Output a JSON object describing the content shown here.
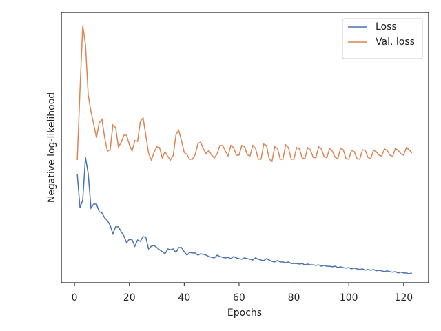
{
  "chart_data": {
    "type": "line",
    "x_label": "Epochs",
    "y_label": "Negative log-likelihood",
    "x": [
      1,
      2,
      3,
      4,
      5,
      6,
      7,
      8,
      9,
      10,
      11,
      12,
      13,
      14,
      15,
      16,
      17,
      18,
      19,
      20,
      21,
      22,
      23,
      24,
      25,
      26,
      27,
      28,
      29,
      30,
      31,
      32,
      33,
      34,
      35,
      36,
      37,
      38,
      39,
      40,
      41,
      42,
      43,
      44,
      45,
      46,
      47,
      48,
      49,
      50,
      51,
      52,
      53,
      54,
      55,
      56,
      57,
      58,
      59,
      60,
      61,
      62,
      63,
      64,
      65,
      66,
      67,
      68,
      69,
      70,
      71,
      72,
      73,
      74,
      75,
      76,
      77,
      78,
      79,
      80,
      81,
      82,
      83,
      84,
      85,
      86,
      87,
      88,
      89,
      90,
      91,
      92,
      93,
      94,
      95,
      96,
      97,
      98,
      99,
      100,
      101,
      102,
      103,
      104,
      105,
      106,
      107,
      108,
      109,
      110,
      111,
      112,
      113,
      114,
      115,
      116,
      117,
      118,
      119,
      120,
      121,
      122,
      123
    ],
    "series": [
      {
        "name": "Loss",
        "color": "#4c72b0",
        "values": [
          4.03,
          2.76,
          3.06,
          4.64,
          4.03,
          2.76,
          2.91,
          2.91,
          2.63,
          2.58,
          2.4,
          2.3,
          2.12,
          1.81,
          2.07,
          2.07,
          1.89,
          1.73,
          1.48,
          1.61,
          1.58,
          1.35,
          1.58,
          1.53,
          1.71,
          1.68,
          1.25,
          1.35,
          1.38,
          1.3,
          1.22,
          1.15,
          1.07,
          1.25,
          1.22,
          1.25,
          1.12,
          1.3,
          1.3,
          1.15,
          1.02,
          1.12,
          1.1,
          1.1,
          1.02,
          1.07,
          1.05,
          1.02,
          0.97,
          0.94,
          0.92,
          1.02,
          0.97,
          0.94,
          0.92,
          0.94,
          0.89,
          0.97,
          0.92,
          0.89,
          0.87,
          0.92,
          0.89,
          0.87,
          0.84,
          0.92,
          0.87,
          0.84,
          0.82,
          0.89,
          0.84,
          0.79,
          0.77,
          0.82,
          0.77,
          0.77,
          0.74,
          0.77,
          0.71,
          0.71,
          0.71,
          0.69,
          0.71,
          0.66,
          0.69,
          0.66,
          0.66,
          0.64,
          0.66,
          0.61,
          0.64,
          0.61,
          0.61,
          0.59,
          0.61,
          0.56,
          0.59,
          0.56,
          0.54,
          0.56,
          0.51,
          0.54,
          0.51,
          0.49,
          0.51,
          0.46,
          0.49,
          0.46,
          0.49,
          0.44,
          0.46,
          0.44,
          0.41,
          0.44,
          0.41,
          0.39,
          0.41,
          0.36,
          0.39,
          0.36,
          0.36,
          0.33,
          0.36
        ]
      },
      {
        "name": "Val. loss",
        "color": "#dd8452",
        "values": [
          4.54,
          7.14,
          9.52,
          8.8,
          6.94,
          6.33,
          5.87,
          5.36,
          5.92,
          6.05,
          5.36,
          4.87,
          4.92,
          5.84,
          5.74,
          5.03,
          5.18,
          5.46,
          5.46,
          5.1,
          4.87,
          5.26,
          5.23,
          5.97,
          6.1,
          5.46,
          4.8,
          4.54,
          4.82,
          5.03,
          5.0,
          4.62,
          4.85,
          4.67,
          4.54,
          4.72,
          5.48,
          5.64,
          5.26,
          4.82,
          4.74,
          4.57,
          4.57,
          4.74,
          5.15,
          5.2,
          4.95,
          4.77,
          4.9,
          4.72,
          4.62,
          4.77,
          5.08,
          5.08,
          4.87,
          4.69,
          5.08,
          5.0,
          4.72,
          4.72,
          5.08,
          5.03,
          4.74,
          4.69,
          5.08,
          4.97,
          4.57,
          4.57,
          5.13,
          5.08,
          4.57,
          4.49,
          5.03,
          4.97,
          4.57,
          4.57,
          5.1,
          5.0,
          4.57,
          4.57,
          5.0,
          4.95,
          4.62,
          4.59,
          5.0,
          4.92,
          4.64,
          4.62,
          5.03,
          4.95,
          4.67,
          4.62,
          4.97,
          4.87,
          4.64,
          4.59,
          4.97,
          4.92,
          4.59,
          4.57,
          4.9,
          4.85,
          4.59,
          4.57,
          4.92,
          4.9,
          4.64,
          4.59,
          4.9,
          4.85,
          4.72,
          4.69,
          4.95,
          4.9,
          4.72,
          4.67,
          4.97,
          4.9,
          4.77,
          4.72,
          5.0,
          4.92,
          4.8
        ]
      }
    ],
    "xlim": [
      -4.8,
      129.1
    ],
    "xticks": [
      0,
      20,
      40,
      60,
      80,
      100,
      120
    ],
    "ylim": [
      0,
      10
    ],
    "legend": "upper right"
  }
}
